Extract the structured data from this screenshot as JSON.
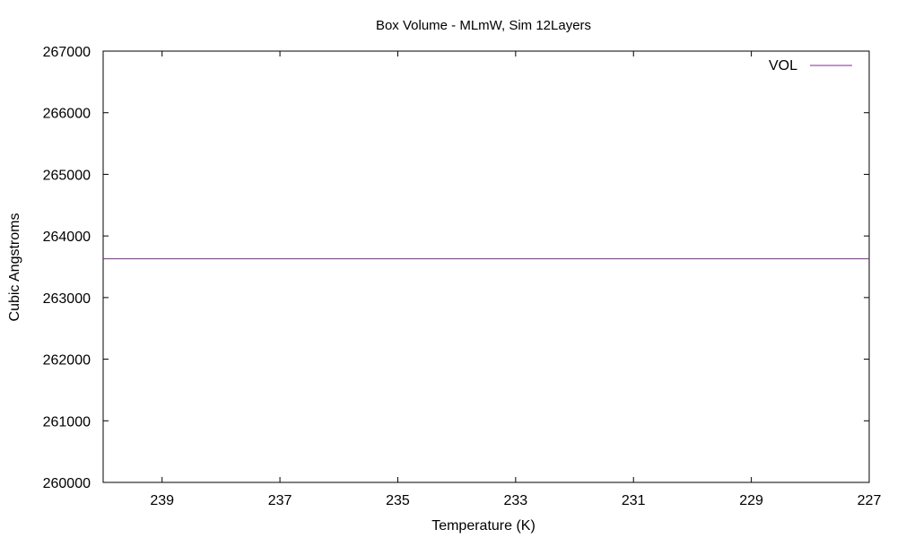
{
  "chart_data": {
    "type": "line",
    "title": "Box Volume - MLmW, Sim 12Layers",
    "xlabel": "Temperature (K)",
    "ylabel": "Cubic Angstroms",
    "xlim": [
      240,
      227
    ],
    "ylim": [
      260000,
      267000
    ],
    "x_ticks": [
      239,
      237,
      235,
      233,
      231,
      229,
      227
    ],
    "y_ticks": [
      260000,
      261000,
      262000,
      263000,
      264000,
      265000,
      266000,
      267000
    ],
    "grid": false,
    "legend_position": "top-right",
    "series": [
      {
        "name": "VOL",
        "color": "#7b2d8e",
        "x": [
          240,
          227
        ],
        "y": [
          263630,
          263630
        ]
      }
    ]
  }
}
